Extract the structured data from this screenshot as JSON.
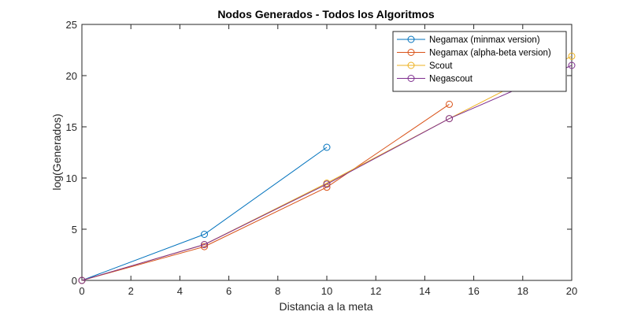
{
  "chart_data": {
    "type": "line",
    "title": "Nodos Generados - Todos los Algoritmos",
    "xlabel": "Distancia a la meta",
    "ylabel": "log(Generados)",
    "xlim": [
      0,
      20
    ],
    "ylim": [
      0,
      25
    ],
    "xticks": [
      0,
      2,
      4,
      6,
      8,
      10,
      12,
      14,
      16,
      18,
      20
    ],
    "yticks": [
      0,
      5,
      10,
      15,
      20,
      25
    ],
    "grid": false,
    "legend_position": "top-right",
    "marker": "circle",
    "series": [
      {
        "name": "Negamax (minmax version)",
        "color": "#0072bd",
        "x": [
          0,
          5,
          10
        ],
        "y": [
          0,
          4.5,
          13.0
        ]
      },
      {
        "name": "Negamax (alpha-beta version)",
        "color": "#d95319",
        "x": [
          0,
          5,
          10,
          15
        ],
        "y": [
          0,
          3.3,
          9.1,
          17.2
        ]
      },
      {
        "name": "Scout",
        "color": "#edb120",
        "x": [
          0,
          5,
          10,
          15,
          20
        ],
        "y": [
          0,
          3.5,
          9.5,
          15.8,
          21.9
        ]
      },
      {
        "name": "Negascout",
        "color": "#7e2f8e",
        "x": [
          0,
          5,
          10,
          15,
          20
        ],
        "y": [
          0,
          3.5,
          9.4,
          15.8,
          21.0
        ]
      }
    ]
  }
}
